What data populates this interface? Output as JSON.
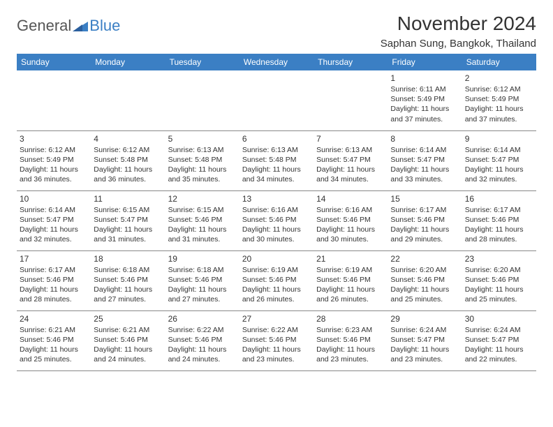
{
  "brand": {
    "text1": "General",
    "text2": "Blue",
    "color_gray": "#555555",
    "color_blue": "#3b7fc4"
  },
  "title": "November 2024",
  "location": "Saphan Sung, Bangkok, Thailand",
  "header_bg": "#3b7fc4",
  "header_fg": "#ffffff",
  "border_color": "#888888",
  "text_color": "#333333",
  "dow": [
    "Sunday",
    "Monday",
    "Tuesday",
    "Wednesday",
    "Thursday",
    "Friday",
    "Saturday"
  ],
  "weeks": [
    [
      null,
      null,
      null,
      null,
      null,
      {
        "n": "1",
        "sr": "6:11 AM",
        "ss": "5:49 PM",
        "dl": "11 hours and 37 minutes."
      },
      {
        "n": "2",
        "sr": "6:12 AM",
        "ss": "5:49 PM",
        "dl": "11 hours and 37 minutes."
      }
    ],
    [
      {
        "n": "3",
        "sr": "6:12 AM",
        "ss": "5:49 PM",
        "dl": "11 hours and 36 minutes."
      },
      {
        "n": "4",
        "sr": "6:12 AM",
        "ss": "5:48 PM",
        "dl": "11 hours and 36 minutes."
      },
      {
        "n": "5",
        "sr": "6:13 AM",
        "ss": "5:48 PM",
        "dl": "11 hours and 35 minutes."
      },
      {
        "n": "6",
        "sr": "6:13 AM",
        "ss": "5:48 PM",
        "dl": "11 hours and 34 minutes."
      },
      {
        "n": "7",
        "sr": "6:13 AM",
        "ss": "5:47 PM",
        "dl": "11 hours and 34 minutes."
      },
      {
        "n": "8",
        "sr": "6:14 AM",
        "ss": "5:47 PM",
        "dl": "11 hours and 33 minutes."
      },
      {
        "n": "9",
        "sr": "6:14 AM",
        "ss": "5:47 PM",
        "dl": "11 hours and 32 minutes."
      }
    ],
    [
      {
        "n": "10",
        "sr": "6:14 AM",
        "ss": "5:47 PM",
        "dl": "11 hours and 32 minutes."
      },
      {
        "n": "11",
        "sr": "6:15 AM",
        "ss": "5:47 PM",
        "dl": "11 hours and 31 minutes."
      },
      {
        "n": "12",
        "sr": "6:15 AM",
        "ss": "5:46 PM",
        "dl": "11 hours and 31 minutes."
      },
      {
        "n": "13",
        "sr": "6:16 AM",
        "ss": "5:46 PM",
        "dl": "11 hours and 30 minutes."
      },
      {
        "n": "14",
        "sr": "6:16 AM",
        "ss": "5:46 PM",
        "dl": "11 hours and 30 minutes."
      },
      {
        "n": "15",
        "sr": "6:17 AM",
        "ss": "5:46 PM",
        "dl": "11 hours and 29 minutes."
      },
      {
        "n": "16",
        "sr": "6:17 AM",
        "ss": "5:46 PM",
        "dl": "11 hours and 28 minutes."
      }
    ],
    [
      {
        "n": "17",
        "sr": "6:17 AM",
        "ss": "5:46 PM",
        "dl": "11 hours and 28 minutes."
      },
      {
        "n": "18",
        "sr": "6:18 AM",
        "ss": "5:46 PM",
        "dl": "11 hours and 27 minutes."
      },
      {
        "n": "19",
        "sr": "6:18 AM",
        "ss": "5:46 PM",
        "dl": "11 hours and 27 minutes."
      },
      {
        "n": "20",
        "sr": "6:19 AM",
        "ss": "5:46 PM",
        "dl": "11 hours and 26 minutes."
      },
      {
        "n": "21",
        "sr": "6:19 AM",
        "ss": "5:46 PM",
        "dl": "11 hours and 26 minutes."
      },
      {
        "n": "22",
        "sr": "6:20 AM",
        "ss": "5:46 PM",
        "dl": "11 hours and 25 minutes."
      },
      {
        "n": "23",
        "sr": "6:20 AM",
        "ss": "5:46 PM",
        "dl": "11 hours and 25 minutes."
      }
    ],
    [
      {
        "n": "24",
        "sr": "6:21 AM",
        "ss": "5:46 PM",
        "dl": "11 hours and 25 minutes."
      },
      {
        "n": "25",
        "sr": "6:21 AM",
        "ss": "5:46 PM",
        "dl": "11 hours and 24 minutes."
      },
      {
        "n": "26",
        "sr": "6:22 AM",
        "ss": "5:46 PM",
        "dl": "11 hours and 24 minutes."
      },
      {
        "n": "27",
        "sr": "6:22 AM",
        "ss": "5:46 PM",
        "dl": "11 hours and 23 minutes."
      },
      {
        "n": "28",
        "sr": "6:23 AM",
        "ss": "5:46 PM",
        "dl": "11 hours and 23 minutes."
      },
      {
        "n": "29",
        "sr": "6:24 AM",
        "ss": "5:47 PM",
        "dl": "11 hours and 23 minutes."
      },
      {
        "n": "30",
        "sr": "6:24 AM",
        "ss": "5:47 PM",
        "dl": "11 hours and 22 minutes."
      }
    ]
  ],
  "labels": {
    "sunrise": "Sunrise: ",
    "sunset": "Sunset: ",
    "daylight": "Daylight: "
  }
}
